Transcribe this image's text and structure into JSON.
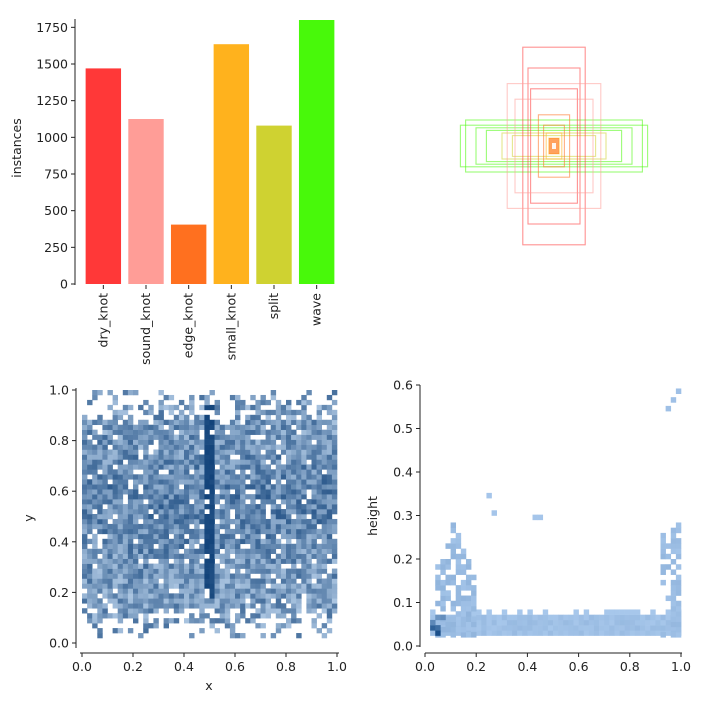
{
  "chart_data": [
    {
      "type": "bar",
      "title": "",
      "xlabel": "",
      "ylabel": "instances",
      "categories": [
        "dry_knot",
        "sound_knot",
        "edge_knot",
        "small_knot",
        "split",
        "wave"
      ],
      "values": [
        1470,
        1125,
        405,
        1635,
        1080,
        1800
      ],
      "colors": [
        "#ff3838",
        "#ff9d97",
        "#ff701f",
        "#ffb21d",
        "#cfd231",
        "#48f90a"
      ],
      "ylim": [
        0,
        1800
      ],
      "yticks": [
        "0",
        "250",
        "500",
        "750",
        "1000",
        "1250",
        "1500",
        "1750"
      ],
      "ytick_values": [
        0,
        250,
        500,
        750,
        1000,
        1250,
        1500,
        1750
      ]
    },
    {
      "type": "scatter",
      "title": "",
      "subtype": "bounding-box overlay (centered)",
      "boxes": [
        {
          "w": 0.36,
          "h": 0.08,
          "color": "#48f90a"
        },
        {
          "w": 0.34,
          "h": 0.1,
          "color": "#48f90a"
        },
        {
          "w": 0.3,
          "h": 0.07,
          "color": "#48f90a"
        },
        {
          "w": 0.26,
          "h": 0.06,
          "color": "#48f90a"
        },
        {
          "w": 0.2,
          "h": 0.05,
          "color": "#cfd231"
        },
        {
          "w": 0.16,
          "h": 0.04,
          "color": "#cfd231"
        },
        {
          "w": 0.12,
          "h": 0.38,
          "color": "#ff3838"
        },
        {
          "w": 0.1,
          "h": 0.3,
          "color": "#ff3838"
        },
        {
          "w": 0.09,
          "h": 0.22,
          "color": "#ff3838"
        },
        {
          "w": 0.18,
          "h": 0.24,
          "color": "#ff9d97"
        },
        {
          "w": 0.15,
          "h": 0.18,
          "color": "#ff9d97"
        },
        {
          "w": 0.06,
          "h": 0.12,
          "color": "#ff701f"
        },
        {
          "w": 0.04,
          "h": 0.08,
          "color": "#ff701f"
        },
        {
          "w": 0.03,
          "h": 0.05,
          "color": "#ffb21d"
        },
        {
          "w": 0.02,
          "h": 0.03,
          "color": "#ffb21d"
        }
      ]
    },
    {
      "type": "heatmap",
      "title": "",
      "xlabel": "x",
      "ylabel": "y",
      "xlim": [
        0,
        1
      ],
      "ylim": [
        0,
        1
      ],
      "xticks": [
        "0.0",
        "0.2",
        "0.4",
        "0.6",
        "0.8",
        "1.0"
      ],
      "xtick_values": [
        0,
        0.2,
        0.4,
        0.6,
        0.8,
        1.0
      ],
      "yticks": [
        "0.0",
        "0.2",
        "0.4",
        "0.6",
        "0.8",
        "1.0"
      ],
      "ytick_values": [
        0,
        0.2,
        0.4,
        0.6,
        0.8,
        1.0
      ],
      "bins": 50,
      "hotspot_x": 0.5,
      "color_low": "#c6dcf3",
      "color_high": "#12437a"
    },
    {
      "type": "heatmap",
      "title": "",
      "xlabel": "",
      "ylabel": "height",
      "xlim": [
        0,
        1
      ],
      "ylim": [
        0,
        0.62
      ],
      "xticks": [
        "0.0",
        "0.2",
        "0.4",
        "0.6",
        "0.8",
        "1.0"
      ],
      "xtick_values": [
        0,
        0.2,
        0.4,
        0.6,
        0.8,
        1.0
      ],
      "yticks": [
        "0.0",
        "0.1",
        "0.2",
        "0.3",
        "0.4",
        "0.5",
        "0.6"
      ],
      "ytick_values": [
        0,
        0.1,
        0.2,
        0.3,
        0.4,
        0.5,
        0.6
      ],
      "color_low": "#aecdf0",
      "color_high": "#1a4f8a"
    }
  ]
}
